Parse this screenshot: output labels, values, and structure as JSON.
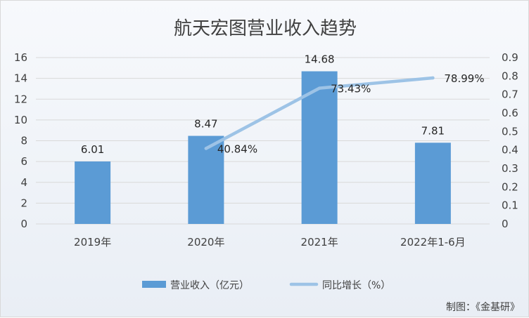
{
  "chart_data": {
    "type": "bar",
    "title": "航天宏图营业收入趋势",
    "categories": [
      "2019年",
      "2020年",
      "2021年",
      "2022年1-6月"
    ],
    "series": [
      {
        "name": "营业收入（亿元）",
        "type": "bar",
        "axis": "left",
        "values": [
          6.01,
          8.47,
          14.68,
          7.81
        ],
        "labels": [
          "6.01",
          "8.47",
          "14.68",
          "7.81"
        ],
        "color": "#5b9bd5"
      },
      {
        "name": "同比增长（%）",
        "type": "line",
        "axis": "right",
        "values": [
          null,
          0.4084,
          0.7343,
          0.7899
        ],
        "labels": [
          "",
          "40.84%",
          "73.43%",
          "78.99%"
        ],
        "color": "#9dc3e6"
      }
    ],
    "y_left": {
      "range": [
        0,
        16
      ],
      "ticks": [
        "0",
        "2",
        "4",
        "6",
        "8",
        "10",
        "12",
        "14",
        "16"
      ]
    },
    "y_right": {
      "range": [
        0,
        0.9
      ],
      "ticks": [
        "0",
        "0.1",
        "0.2",
        "0.3",
        "0.4",
        "0.5",
        "0.6",
        "0.7",
        "0.8",
        "0.9"
      ]
    },
    "legend": "bottom",
    "grid": true
  },
  "credit": "制图：《金基研》"
}
